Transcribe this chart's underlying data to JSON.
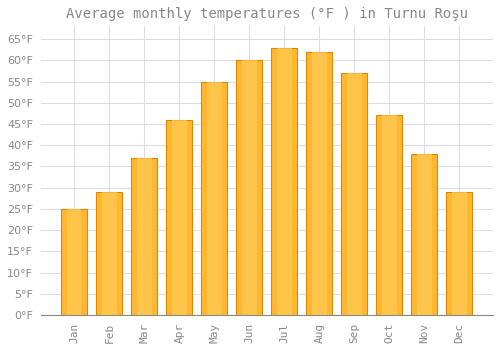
{
  "title": "Average monthly temperatures (°F ) in Turnu Roşu",
  "months": [
    "Jan",
    "Feb",
    "Mar",
    "Apr",
    "May",
    "Jun",
    "Jul",
    "Aug",
    "Sep",
    "Oct",
    "Nov",
    "Dec"
  ],
  "values": [
    25,
    29,
    37,
    46,
    55,
    60,
    63,
    62,
    57,
    47,
    38,
    29
  ],
  "bar_color": "#FFA500",
  "bar_edge_color": "#E08000",
  "background_color": "#FFFFFF",
  "grid_color": "#DDDDDD",
  "text_color": "#888888",
  "ylim": [
    0,
    68
  ],
  "yticks": [
    0,
    5,
    10,
    15,
    20,
    25,
    30,
    35,
    40,
    45,
    50,
    55,
    60,
    65
  ],
  "title_fontsize": 10,
  "tick_fontsize": 8
}
